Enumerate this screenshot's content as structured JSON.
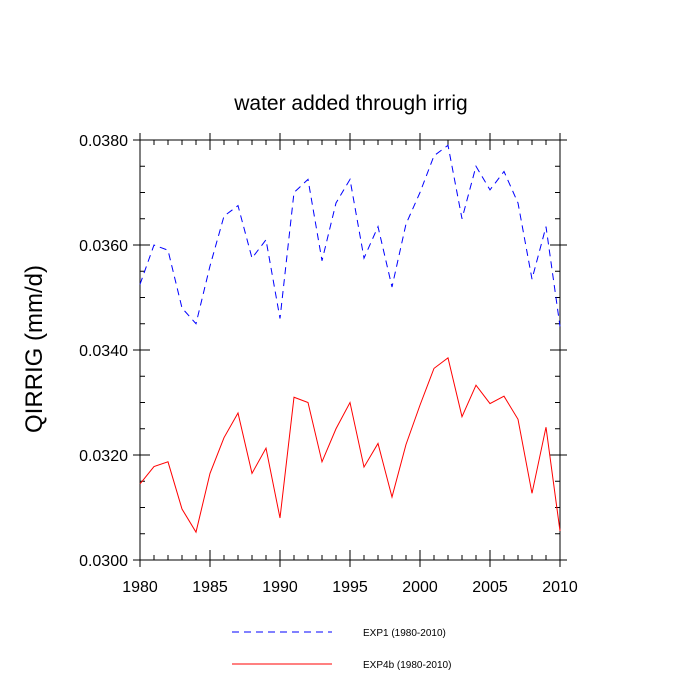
{
  "chart_data": {
    "type": "line",
    "title": "water added through irrig",
    "xlabel": "",
    "ylabel": "QIRRIG  (mm/d)",
    "xlim": [
      1980,
      2010
    ],
    "ylim": [
      0.03,
      0.038
    ],
    "x_ticks": [
      1980,
      1985,
      1990,
      1995,
      2000,
      2005,
      2010
    ],
    "x_tick_labels": [
      "1980",
      "1985",
      "1990",
      "1995",
      "2000",
      "2005",
      "2010"
    ],
    "y_ticks": [
      0.03,
      0.032,
      0.034,
      0.036,
      0.038
    ],
    "y_tick_labels": [
      "0.0300",
      "0.0320",
      "0.0340",
      "0.0360",
      "0.0380"
    ],
    "x": [
      1980,
      1981,
      1982,
      1983,
      1984,
      1985,
      1986,
      1987,
      1988,
      1989,
      1990,
      1991,
      1992,
      1993,
      1994,
      1995,
      1996,
      1997,
      1998,
      1999,
      2000,
      2001,
      2002,
      2003,
      2004,
      2005,
      2006,
      2007,
      2008,
      2009,
      2010
    ],
    "series": [
      {
        "name": "EXP1 (1980-2010)",
        "color": "#0000ff",
        "style": "dashed",
        "values": [
          0.03525,
          0.036,
          0.0359,
          0.0348,
          0.0345,
          0.0356,
          0.03655,
          0.03675,
          0.03575,
          0.0361,
          0.0346,
          0.037,
          0.03725,
          0.0357,
          0.0368,
          0.03725,
          0.03575,
          0.03635,
          0.0352,
          0.0364,
          0.037,
          0.0377,
          0.0379,
          0.0365,
          0.0375,
          0.03705,
          0.0374,
          0.0368,
          0.03535,
          0.03635,
          0.03445
        ]
      },
      {
        "name": "EXP4b (1980-2010)",
        "color": "#ff0000",
        "style": "solid",
        "values": [
          0.03145,
          0.03178,
          0.03187,
          0.03097,
          0.03053,
          0.03165,
          0.03233,
          0.0328,
          0.03165,
          0.03213,
          0.0308,
          0.0331,
          0.033,
          0.03187,
          0.0325,
          0.033,
          0.03177,
          0.03222,
          0.0312,
          0.0322,
          0.03295,
          0.03365,
          0.03385,
          0.03273,
          0.03333,
          0.03298,
          0.03312,
          0.03268,
          0.03127,
          0.03253,
          0.03055
        ]
      }
    ],
    "legend_position": "bottom",
    "grid": false
  }
}
